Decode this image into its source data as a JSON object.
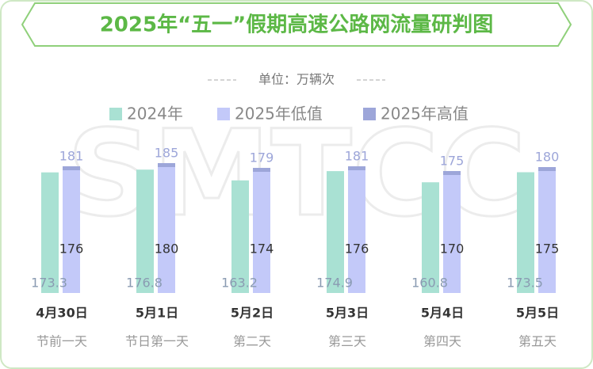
{
  "chart_data": {
    "type": "bar",
    "title": "2025年“五一”假期高速公路网流量研判图",
    "subtitle": "单位：万辆次",
    "watermark": "SMTCC",
    "categories": [
      "4月30日",
      "5月1日",
      "5月2日",
      "5月3日",
      "5月4日",
      "5月5日"
    ],
    "day_labels": [
      "节前一天",
      "节日第一天",
      "第二天",
      "第三天",
      "第四天",
      "第五天"
    ],
    "series": [
      {
        "name": "2024年",
        "color": "#a9e1d3",
        "values": [
          173.3,
          176.8,
          163.2,
          174.9,
          160.8,
          173.5
        ]
      },
      {
        "name": "2025年低值",
        "color": "#c3c9f9",
        "values": [
          176,
          180,
          174,
          176,
          170,
          175
        ]
      },
      {
        "name": "2025年高值",
        "color": "#9da6d9",
        "values": [
          181,
          185,
          179,
          181,
          175,
          180
        ]
      }
    ],
    "ylim": [
      21,
      200
    ]
  }
}
